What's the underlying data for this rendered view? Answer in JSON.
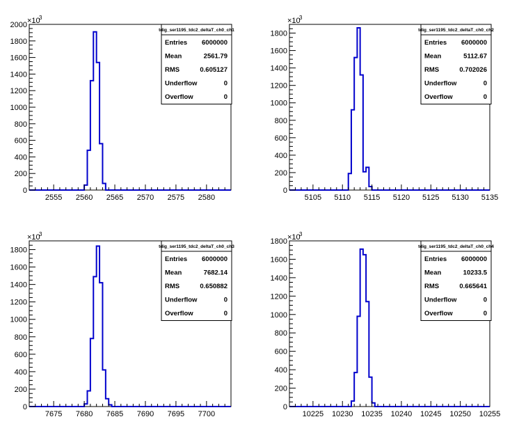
{
  "chart_data": [
    {
      "type": "histogram",
      "title": "tdig_ser1195_tdc2_deltaT_ch0_ch1",
      "xlim": [
        2551,
        2584
      ],
      "ylim": [
        0,
        2000
      ],
      "x_ticks": [
        2555,
        2560,
        2565,
        2570,
        2575,
        2580
      ],
      "y_ticks": [
        0,
        200,
        400,
        600,
        800,
        1000,
        1200,
        1400,
        1600,
        1800,
        2000
      ],
      "y_exponent": "×10",
      "y_exponent_power": "3",
      "bin_width": 0.5,
      "bins": [
        {
          "x": 2559.5,
          "y": 0
        },
        {
          "x": 2560.0,
          "y": 60
        },
        {
          "x": 2560.5,
          "y": 480
        },
        {
          "x": 2561.0,
          "y": 1320
        },
        {
          "x": 2561.5,
          "y": 1910
        },
        {
          "x": 2562.0,
          "y": 1540
        },
        {
          "x": 2562.5,
          "y": 560
        },
        {
          "x": 2563.0,
          "y": 80
        },
        {
          "x": 2563.5,
          "y": 0
        }
      ],
      "stats": [
        {
          "label": "Entries",
          "value": "6000000"
        },
        {
          "label": "Mean",
          "value": "2561.79"
        },
        {
          "label": "RMS",
          "value": "0.605127"
        },
        {
          "label": "Underflow",
          "value": "0"
        },
        {
          "label": "Overflow",
          "value": "0"
        }
      ]
    },
    {
      "type": "histogram",
      "title": "tdig_ser1195_tdc2_deltaT_ch0_ch2",
      "xlim": [
        5101,
        5135
      ],
      "ylim": [
        0,
        1900
      ],
      "x_ticks": [
        5105,
        5110,
        5115,
        5120,
        5125,
        5130,
        5135
      ],
      "y_ticks": [
        0,
        200,
        400,
        600,
        800,
        1000,
        1200,
        1400,
        1600,
        1800
      ],
      "y_exponent": "×10",
      "y_exponent_power": "3",
      "bin_width": 0.5,
      "bins": [
        {
          "x": 5110.5,
          "y": 0
        },
        {
          "x": 5111.0,
          "y": 190
        },
        {
          "x": 5111.5,
          "y": 920
        },
        {
          "x": 5112.0,
          "y": 1520
        },
        {
          "x": 5112.5,
          "y": 1860
        },
        {
          "x": 5113.0,
          "y": 1320
        },
        {
          "x": 5113.5,
          "y": 210
        },
        {
          "x": 5114.0,
          "y": 260
        },
        {
          "x": 5114.5,
          "y": 40
        },
        {
          "x": 5115.0,
          "y": 0
        }
      ],
      "stats": [
        {
          "label": "Entries",
          "value": "6000000"
        },
        {
          "label": "Mean",
          "value": "5112.67"
        },
        {
          "label": "RMS",
          "value": "0.702026"
        },
        {
          "label": "Underflow",
          "value": "0"
        },
        {
          "label": "Overflow",
          "value": "0"
        }
      ]
    },
    {
      "type": "histogram",
      "title": "tdig_ser1195_tdc2_deltaT_ch0_ch3",
      "xlim": [
        7671,
        7704
      ],
      "ylim": [
        0,
        1900
      ],
      "x_ticks": [
        7675,
        7680,
        7685,
        7690,
        7695,
        7700
      ],
      "y_ticks": [
        0,
        200,
        400,
        600,
        800,
        1000,
        1200,
        1400,
        1600,
        1800
      ],
      "y_exponent": "×10",
      "y_exponent_power": "3",
      "bin_width": 0.5,
      "bins": [
        {
          "x": 7679.5,
          "y": 0
        },
        {
          "x": 7680.0,
          "y": 30
        },
        {
          "x": 7680.5,
          "y": 180
        },
        {
          "x": 7681.0,
          "y": 780
        },
        {
          "x": 7681.5,
          "y": 1490
        },
        {
          "x": 7682.0,
          "y": 1840
        },
        {
          "x": 7682.5,
          "y": 1420
        },
        {
          "x": 7683.0,
          "y": 420
        },
        {
          "x": 7683.5,
          "y": 90
        },
        {
          "x": 7684.0,
          "y": 20
        },
        {
          "x": 7684.5,
          "y": 0
        }
      ],
      "stats": [
        {
          "label": "Entries",
          "value": "6000000"
        },
        {
          "label": "Mean",
          "value": "7682.14"
        },
        {
          "label": "RMS",
          "value": "0.650882"
        },
        {
          "label": "Underflow",
          "value": "0"
        },
        {
          "label": "Overflow",
          "value": "0"
        }
      ]
    },
    {
      "type": "histogram",
      "title": "tdig_ser1195_tdc2_deltaT_ch0_ch4",
      "xlim": [
        10221,
        10255
      ],
      "ylim": [
        0,
        1800
      ],
      "x_ticks": [
        10225,
        10230,
        10235,
        10240,
        10245,
        10250,
        10255
      ],
      "y_ticks": [
        0,
        200,
        400,
        600,
        800,
        1000,
        1200,
        1400,
        1600,
        1800
      ],
      "y_exponent": "×10",
      "y_exponent_power": "3",
      "bin_width": 0.5,
      "bins": [
        {
          "x": 10231.0,
          "y": 0
        },
        {
          "x": 10231.5,
          "y": 60
        },
        {
          "x": 10232.0,
          "y": 370
        },
        {
          "x": 10232.5,
          "y": 980
        },
        {
          "x": 10233.0,
          "y": 1710
        },
        {
          "x": 10233.5,
          "y": 1650
        },
        {
          "x": 10234.0,
          "y": 1140
        },
        {
          "x": 10234.5,
          "y": 320
        },
        {
          "x": 10235.0,
          "y": 40
        },
        {
          "x": 10235.5,
          "y": 0
        }
      ],
      "stats": [
        {
          "label": "Entries",
          "value": "6000000"
        },
        {
          "label": "Mean",
          "value": "10233.5"
        },
        {
          "label": "RMS",
          "value": "0.665641"
        },
        {
          "label": "Underflow",
          "value": "0"
        },
        {
          "label": "Overflow",
          "value": "0"
        }
      ]
    }
  ],
  "colors": {
    "line": "#0000cc",
    "axis": "#000000",
    "background": "#ffffff"
  }
}
